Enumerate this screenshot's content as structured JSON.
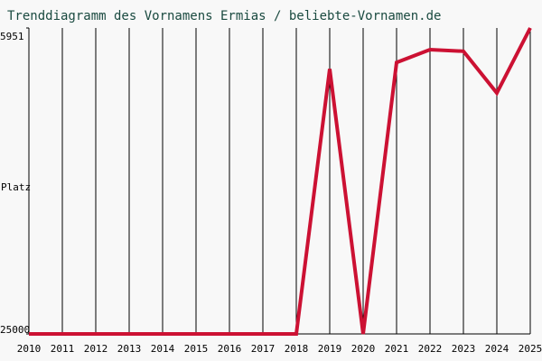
{
  "chart_data": {
    "type": "line",
    "title": "Trenddiagramm des Vornamens Ermias / beliebte-Vornamen.de",
    "y_label": "Platz",
    "x": [
      2010,
      2011,
      2012,
      2013,
      2014,
      2015,
      2016,
      2017,
      2018,
      2019,
      2020,
      2021,
      2022,
      2023,
      2024,
      2025
    ],
    "values": [
      25000,
      25000,
      25000,
      25000,
      25000,
      25000,
      25000,
      25000,
      25000,
      8500,
      25000,
      8100,
      7300,
      7400,
      10000,
      5951
    ],
    "color": "#cc1133",
    "xlim": [
      2010,
      2025
    ],
    "ylim": [
      25000,
      5951
    ],
    "yticks": [
      5951,
      25000
    ],
    "grid": true
  }
}
